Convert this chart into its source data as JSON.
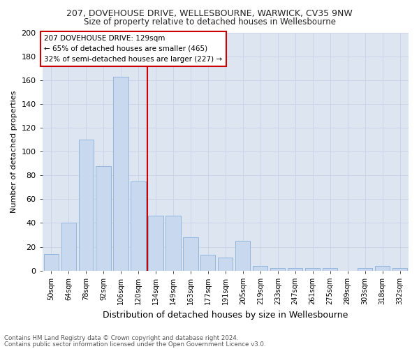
{
  "title1": "207, DOVEHOUSE DRIVE, WELLESBOURNE, WARWICK, CV35 9NW",
  "title2": "Size of property relative to detached houses in Wellesbourne",
  "xlabel": "Distribution of detached houses by size in Wellesbourne",
  "ylabel": "Number of detached properties",
  "categories": [
    "50sqm",
    "64sqm",
    "78sqm",
    "92sqm",
    "106sqm",
    "120sqm",
    "134sqm",
    "149sqm",
    "163sqm",
    "177sqm",
    "191sqm",
    "205sqm",
    "219sqm",
    "233sqm",
    "247sqm",
    "261sqm",
    "275sqm",
    "289sqm",
    "303sqm",
    "318sqm",
    "332sqm"
  ],
  "values": [
    14,
    40,
    110,
    88,
    163,
    75,
    46,
    46,
    28,
    13,
    11,
    25,
    4,
    2,
    2,
    2,
    2,
    0,
    2,
    4,
    2
  ],
  "bar_color": "#c8d8ee",
  "bar_edge_color": "#8ab0d8",
  "bar_width": 0.85,
  "red_line_x": 6.0,
  "annotation_text": "207 DOVEHOUSE DRIVE: 129sqm\n← 65% of detached houses are smaller (465)\n32% of semi-detached houses are larger (227) →",
  "annotation_box_color": "#ffffff",
  "annotation_box_edge_color": "#cc0000",
  "red_line_color": "#cc0000",
  "grid_color": "#ccd5e8",
  "background_color": "#dde5f0",
  "footer1": "Contains HM Land Registry data © Crown copyright and database right 2024.",
  "footer2": "Contains public sector information licensed under the Open Government Licence v3.0.",
  "ylim": [
    0,
    200
  ],
  "yticks": [
    0,
    20,
    40,
    60,
    80,
    100,
    120,
    140,
    160,
    180,
    200
  ]
}
